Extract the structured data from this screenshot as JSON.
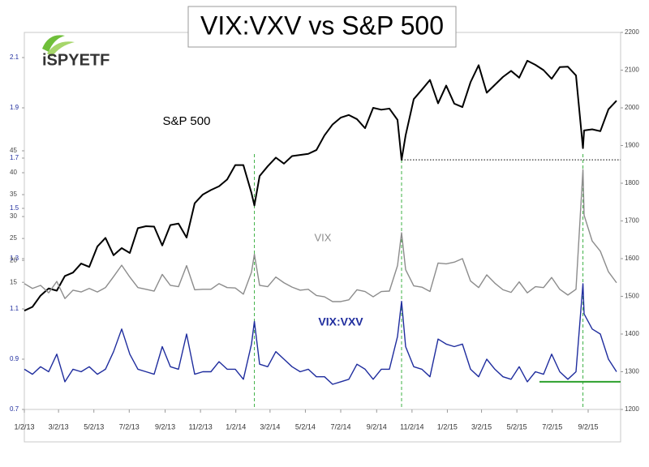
{
  "chart_data": {
    "type": "line",
    "title": "VIX:VXV vs S&P 500",
    "logo": "iSPYETF",
    "x": [
      "2013-01-02",
      "2013-01-16",
      "2013-01-30",
      "2013-02-13",
      "2013-02-27",
      "2013-03-13",
      "2013-03-27",
      "2013-04-10",
      "2013-04-24",
      "2013-05-08",
      "2013-05-22",
      "2013-06-05",
      "2013-06-19",
      "2013-07-03",
      "2013-07-17",
      "2013-07-31",
      "2013-08-14",
      "2013-08-28",
      "2013-09-11",
      "2013-09-25",
      "2013-10-09",
      "2013-10-23",
      "2013-11-06",
      "2013-11-20",
      "2013-12-04",
      "2013-12-18",
      "2014-01-01",
      "2014-01-15",
      "2014-01-29",
      "2014-02-03",
      "2014-02-12",
      "2014-02-26",
      "2014-03-12",
      "2014-03-26",
      "2014-04-09",
      "2014-04-23",
      "2014-05-07",
      "2014-05-21",
      "2014-06-04",
      "2014-06-18",
      "2014-07-02",
      "2014-07-16",
      "2014-07-30",
      "2014-08-13",
      "2014-08-27",
      "2014-09-10",
      "2014-09-24",
      "2014-10-08",
      "2014-10-15",
      "2014-10-22",
      "2014-11-05",
      "2014-11-19",
      "2014-12-03",
      "2014-12-17",
      "2014-12-31",
      "2015-01-14",
      "2015-01-28",
      "2015-02-11",
      "2015-02-25",
      "2015-03-11",
      "2015-03-25",
      "2015-04-08",
      "2015-04-22",
      "2015-05-06",
      "2015-05-20",
      "2015-06-03",
      "2015-06-17",
      "2015-07-01",
      "2015-07-15",
      "2015-07-29",
      "2015-08-12",
      "2015-08-24",
      "2015-08-26",
      "2015-09-09",
      "2015-09-23",
      "2015-10-07",
      "2015-10-21"
    ],
    "xlim": [
      "2013-01-02",
      "2015-10-28"
    ],
    "xticks": [
      {
        "value": "2013-01-02",
        "label": "1/2/13"
      },
      {
        "value": "2013-03-02",
        "label": "3/2/13"
      },
      {
        "value": "2013-05-02",
        "label": "5/2/13"
      },
      {
        "value": "2013-07-02",
        "label": "7/2/13"
      },
      {
        "value": "2013-09-02",
        "label": "9/2/13"
      },
      {
        "value": "2013-11-02",
        "label": "11/2/13"
      },
      {
        "value": "2014-01-02",
        "label": "1/2/14"
      },
      {
        "value": "2014-03-02",
        "label": "3/2/14"
      },
      {
        "value": "2014-05-02",
        "label": "5/2/14"
      },
      {
        "value": "2014-07-02",
        "label": "7/2/14"
      },
      {
        "value": "2014-09-02",
        "label": "9/2/14"
      },
      {
        "value": "2014-11-02",
        "label": "11/2/14"
      },
      {
        "value": "2015-01-02",
        "label": "1/2/15"
      },
      {
        "value": "2015-03-02",
        "label": "3/2/15"
      },
      {
        "value": "2015-05-02",
        "label": "5/2/15"
      },
      {
        "value": "2015-07-02",
        "label": "7/2/15"
      },
      {
        "value": "2015-09-02",
        "label": "9/2/15"
      }
    ],
    "ylim": [
      0.7,
      2.2
    ],
    "yticks": [
      0.7,
      0.9,
      1.1,
      1.3,
      1.5,
      1.7,
      1.9,
      2.1
    ],
    "y3lim": [
      -14,
      72
    ],
    "y3ticks": [
      15,
      20,
      25,
      30,
      35,
      40,
      45
    ],
    "y2lim": [
      1200,
      2200
    ],
    "y2ticks": [
      1200,
      1300,
      1400,
      1500,
      1600,
      1700,
      1800,
      1900,
      2000,
      2100,
      2200
    ],
    "series": [
      {
        "name": "S&P 500",
        "color": "#000000",
        "axis": "y2",
        "values": [
          1462,
          1472,
          1502,
          1521,
          1515,
          1554,
          1563,
          1587,
          1578,
          1632,
          1655,
          1609,
          1628,
          1615,
          1681,
          1686,
          1685,
          1635,
          1689,
          1693,
          1656,
          1747,
          1770,
          1782,
          1792,
          1810,
          1848,
          1848,
          1774,
          1741,
          1819,
          1845,
          1868,
          1852,
          1872,
          1875,
          1878,
          1888,
          1927,
          1956,
          1974,
          1981,
          1970,
          1946,
          2000,
          1995,
          1998,
          1968,
          1862,
          1927,
          2023,
          2048,
          2074,
          2012,
          2059,
          2011,
          2002,
          2068,
          2113,
          2040,
          2061,
          2082,
          2098,
          2080,
          2125,
          2114,
          2100,
          2077,
          2108,
          2109,
          2086,
          1893,
          1940,
          1943,
          1938,
          1996,
          2019
        ]
      },
      {
        "name": "VIX",
        "color": "#8c8c8c",
        "axis": "y3",
        "values": [
          14.7,
          13.6,
          14.3,
          12.6,
          15.2,
          11.3,
          13.2,
          12.8,
          13.6,
          12.8,
          13.8,
          16.3,
          18.9,
          16.2,
          13.8,
          13.4,
          13.0,
          16.8,
          14.3,
          14.0,
          18.8,
          13.3,
          13.4,
          13.4,
          14.7,
          13.8,
          13.7,
          12.3,
          17.3,
          21.4,
          14.3,
          14.0,
          16.2,
          14.9,
          13.9,
          13.2,
          13.4,
          12.0,
          11.7,
          10.6,
          10.6,
          11.0,
          13.3,
          12.9,
          11.7,
          12.9,
          13.0,
          18.8,
          26.3,
          17.9,
          14.2,
          13.9,
          12.9,
          19.4,
          19.2,
          19.6,
          20.4,
          15.3,
          13.8,
          16.7,
          14.8,
          13.3,
          12.7,
          15.1,
          12.6,
          14.0,
          13.8,
          16.1,
          13.4,
          12.1,
          13.4,
          40.7,
          30.3,
          24.4,
          22.1,
          17.4,
          14.9
        ]
      },
      {
        "name": "VIX:VXV",
        "color": "#1f2d9e",
        "axis": "y",
        "values": [
          0.86,
          0.84,
          0.87,
          0.85,
          0.92,
          0.81,
          0.86,
          0.85,
          0.87,
          0.84,
          0.86,
          0.93,
          1.02,
          0.92,
          0.86,
          0.85,
          0.84,
          0.95,
          0.87,
          0.86,
          1.0,
          0.84,
          0.85,
          0.85,
          0.89,
          0.86,
          0.86,
          0.82,
          0.96,
          1.05,
          0.88,
          0.87,
          0.93,
          0.9,
          0.87,
          0.85,
          0.86,
          0.83,
          0.83,
          0.8,
          0.81,
          0.82,
          0.88,
          0.86,
          0.82,
          0.86,
          0.86,
          0.99,
          1.13,
          0.95,
          0.87,
          0.86,
          0.83,
          0.98,
          0.96,
          0.95,
          0.96,
          0.86,
          0.83,
          0.9,
          0.86,
          0.83,
          0.82,
          0.87,
          0.81,
          0.85,
          0.84,
          0.92,
          0.85,
          0.82,
          0.85,
          1.2,
          1.08,
          1.02,
          1.0,
          0.9,
          0.85
        ]
      }
    ],
    "reference_lines": [
      {
        "x": "2014-02-03",
        "color": "#3cb043",
        "style": "dashed"
      },
      {
        "x": "2014-10-15",
        "color": "#3cb043",
        "style": "dashed"
      },
      {
        "x": "2015-08-24",
        "color": "#3cb043",
        "style": "dashed"
      },
      {
        "y2": 1862,
        "from": "2014-10-15",
        "color": "#000000",
        "style": "dotted"
      },
      {
        "y": 0.81,
        "from": "2015-06-10",
        "color": "#2ca02c",
        "style": "solid"
      }
    ]
  }
}
